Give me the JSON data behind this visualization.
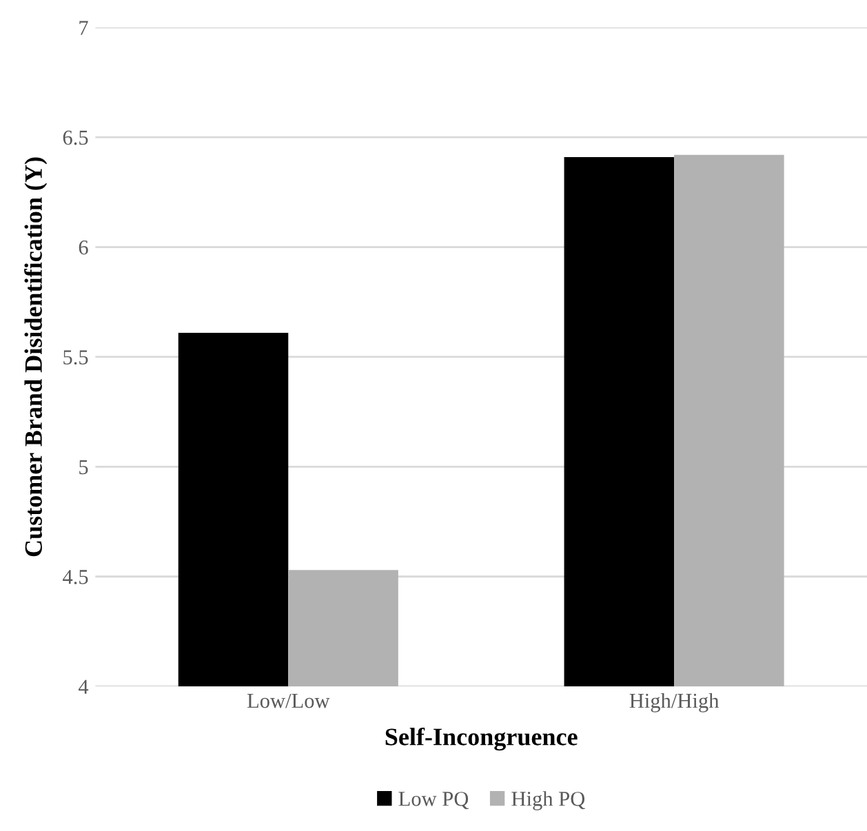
{
  "chart_data": {
    "type": "bar",
    "xlabel": "Self-Incongruence",
    "ylabel": "Customer Brand Disidentification (Y)",
    "categories": [
      "Low/Low",
      "High/High"
    ],
    "series": [
      {
        "name": "Low PQ",
        "color": "#000000",
        "values": [
          5.61,
          6.41
        ]
      },
      {
        "name": "High PQ",
        "color": "#b2b2b2",
        "values": [
          4.53,
          6.42
        ]
      }
    ],
    "ylim": [
      4,
      7
    ],
    "yticks": [
      4,
      4.5,
      5,
      5.5,
      6,
      6.5,
      7
    ],
    "grid": "y",
    "legend": "bottom"
  }
}
